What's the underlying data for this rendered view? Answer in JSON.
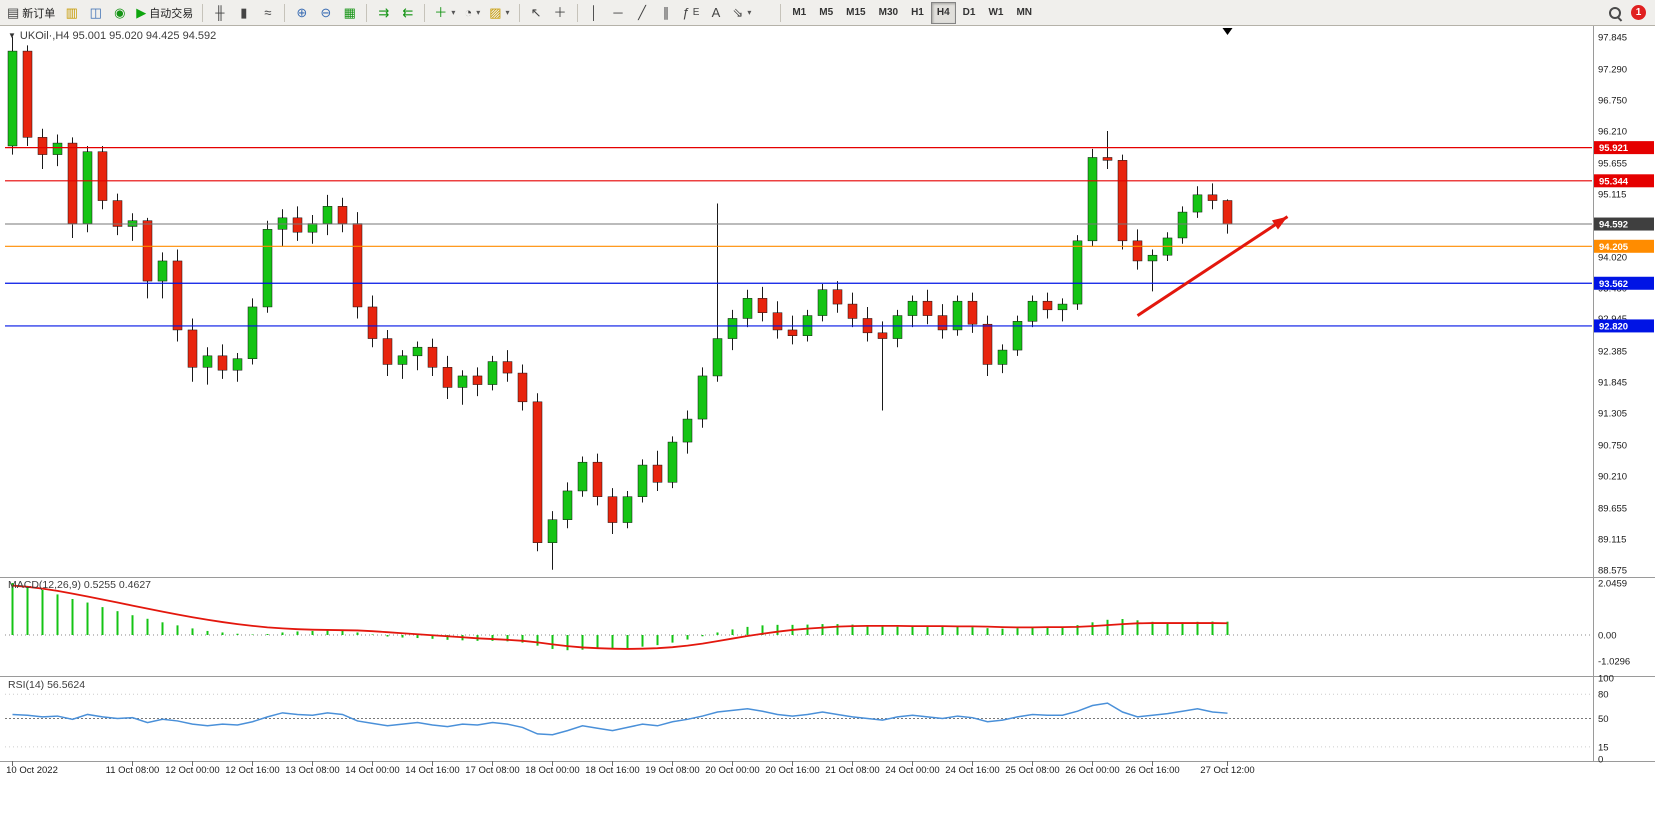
{
  "toolbar": {
    "new_order_label": "新订单",
    "autotrade_label": "自动交易",
    "timeframes": [
      "M1",
      "M5",
      "M15",
      "M30",
      "H1",
      "H4",
      "D1",
      "W1",
      "MN"
    ],
    "active_timeframe": "H4",
    "notification_badge": "1"
  },
  "chart": {
    "title_text": "UKOil·,H4 95.001 95.020 94.425 94.592",
    "symbol": "UKOil",
    "period": "H4"
  },
  "indicators": {
    "macd": {
      "header": "MACD(12,26,9) 0.5255 0.4627"
    },
    "rsi": {
      "header": "RSI(14) 56.5624"
    }
  },
  "chart_data": {
    "type": "candlestick",
    "symbol": "UKOil",
    "timeframe": "H4",
    "last_ohlc": {
      "open": 95.001,
      "high": 95.02,
      "low": 94.425,
      "close": 94.592
    },
    "price_ticks": [
      97.845,
      97.29,
      96.75,
      96.21,
      95.655,
      95.115,
      94.575,
      94.02,
      93.48,
      92.945,
      92.385,
      91.845,
      91.305,
      90.75,
      90.21,
      89.655,
      89.115,
      88.575
    ],
    "hlines": [
      {
        "price": 95.921,
        "color": "#e50000",
        "kind": "resistance"
      },
      {
        "price": 95.344,
        "color": "#e50000",
        "kind": "resistance"
      },
      {
        "price": 94.205,
        "color": "#ff8c00",
        "kind": "pivot"
      },
      {
        "price": 93.562,
        "color": "#0014e5",
        "kind": "support"
      },
      {
        "price": 92.82,
        "color": "#0014e5",
        "kind": "support"
      }
    ],
    "current_price": {
      "price": 94.592,
      "line_color": "#777777",
      "tag_color": "#3f3f3f"
    },
    "colors": {
      "up": "#14c414",
      "down": "#e8250e",
      "wick": "#1a1a1a"
    },
    "candles": [
      [
        95.95,
        97.85,
        95.8,
        97.6
      ],
      [
        97.6,
        97.7,
        95.95,
        96.1
      ],
      [
        96.1,
        96.25,
        95.55,
        95.8
      ],
      [
        95.8,
        96.15,
        95.6,
        96.0
      ],
      [
        96.0,
        96.1,
        94.35,
        94.6
      ],
      [
        94.6,
        95.95,
        94.45,
        95.85
      ],
      [
        95.85,
        95.95,
        94.85,
        95.0
      ],
      [
        95.0,
        95.12,
        94.4,
        94.55
      ],
      [
        94.55,
        94.78,
        94.3,
        94.65
      ],
      [
        94.65,
        94.7,
        93.3,
        93.6
      ],
      [
        93.6,
        94.1,
        93.3,
        93.95
      ],
      [
        93.95,
        94.15,
        92.55,
        92.75
      ],
      [
        92.75,
        92.95,
        91.85,
        92.1
      ],
      [
        92.1,
        92.45,
        91.8,
        92.3
      ],
      [
        92.3,
        92.5,
        91.9,
        92.05
      ],
      [
        92.05,
        92.35,
        91.85,
        92.25
      ],
      [
        92.25,
        93.3,
        92.15,
        93.15
      ],
      [
        93.15,
        94.65,
        93.05,
        94.5
      ],
      [
        94.5,
        94.85,
        94.2,
        94.7
      ],
      [
        94.7,
        94.9,
        94.3,
        94.45
      ],
      [
        94.45,
        94.75,
        94.25,
        94.6
      ],
      [
        94.6,
        95.1,
        94.4,
        94.9
      ],
      [
        94.9,
        95.05,
        94.45,
        94.6
      ],
      [
        94.6,
        94.8,
        92.95,
        93.15
      ],
      [
        93.15,
        93.35,
        92.45,
        92.6
      ],
      [
        92.6,
        92.75,
        91.95,
        92.15
      ],
      [
        92.15,
        92.4,
        91.9,
        92.3
      ],
      [
        92.3,
        92.55,
        92.05,
        92.45
      ],
      [
        92.45,
        92.6,
        91.95,
        92.1
      ],
      [
        92.1,
        92.3,
        91.55,
        91.75
      ],
      [
        91.75,
        92.05,
        91.45,
        91.95
      ],
      [
        91.95,
        92.1,
        91.6,
        91.8
      ],
      [
        91.8,
        92.3,
        91.7,
        92.2
      ],
      [
        92.2,
        92.4,
        91.85,
        92.0
      ],
      [
        92.0,
        92.15,
        91.35,
        91.5
      ],
      [
        91.5,
        91.65,
        88.9,
        89.05
      ],
      [
        89.05,
        89.6,
        88.58,
        89.45
      ],
      [
        89.45,
        90.1,
        89.3,
        89.95
      ],
      [
        89.95,
        90.55,
        89.85,
        90.45
      ],
      [
        90.45,
        90.6,
        89.7,
        89.85
      ],
      [
        89.85,
        90.0,
        89.2,
        89.4
      ],
      [
        89.4,
        89.95,
        89.3,
        89.85
      ],
      [
        89.85,
        90.5,
        89.75,
        90.4
      ],
      [
        90.4,
        90.65,
        89.95,
        90.1
      ],
      [
        90.1,
        90.9,
        90.0,
        90.8
      ],
      [
        90.8,
        91.35,
        90.6,
        91.2
      ],
      [
        91.2,
        92.1,
        91.05,
        91.95
      ],
      [
        91.95,
        94.95,
        91.85,
        92.6
      ],
      [
        92.6,
        93.1,
        92.4,
        92.95
      ],
      [
        92.95,
        93.45,
        92.8,
        93.3
      ],
      [
        93.3,
        93.5,
        92.9,
        93.05
      ],
      [
        93.05,
        93.25,
        92.6,
        92.75
      ],
      [
        92.75,
        93.0,
        92.5,
        92.65
      ],
      [
        92.65,
        93.1,
        92.55,
        93.0
      ],
      [
        93.0,
        93.55,
        92.9,
        93.45
      ],
      [
        93.45,
        93.6,
        93.05,
        93.2
      ],
      [
        93.2,
        93.4,
        92.8,
        92.95
      ],
      [
        92.95,
        93.15,
        92.55,
        92.7
      ],
      [
        92.7,
        92.9,
        91.35,
        92.6
      ],
      [
        92.6,
        93.1,
        92.45,
        93.0
      ],
      [
        93.0,
        93.35,
        92.8,
        93.25
      ],
      [
        93.25,
        93.45,
        92.85,
        93.0
      ],
      [
        93.0,
        93.2,
        92.6,
        92.75
      ],
      [
        92.75,
        93.35,
        92.65,
        93.25
      ],
      [
        93.25,
        93.4,
        92.7,
        92.85
      ],
      [
        92.85,
        93.0,
        91.95,
        92.15
      ],
      [
        92.15,
        92.5,
        92.0,
        92.4
      ],
      [
        92.4,
        93.0,
        92.3,
        92.9
      ],
      [
        92.9,
        93.35,
        92.8,
        93.25
      ],
      [
        93.25,
        93.4,
        92.95,
        93.1
      ],
      [
        93.1,
        93.3,
        92.9,
        93.2
      ],
      [
        93.2,
        94.4,
        93.1,
        94.3
      ],
      [
        94.3,
        95.9,
        94.2,
        95.75
      ],
      [
        95.75,
        96.21,
        95.55,
        95.7
      ],
      [
        95.7,
        95.8,
        94.15,
        94.3
      ],
      [
        94.3,
        94.5,
        93.8,
        93.95
      ],
      [
        93.95,
        94.15,
        93.42,
        94.05
      ],
      [
        94.05,
        94.45,
        93.95,
        94.35
      ],
      [
        94.35,
        94.9,
        94.25,
        94.8
      ],
      [
        94.8,
        95.25,
        94.7,
        95.1
      ],
      [
        95.1,
        95.3,
        94.85,
        95.0
      ],
      [
        95.001,
        95.02,
        94.425,
        94.592
      ]
    ],
    "time_labels": [
      {
        "i": 0,
        "t": "10 Oct 2022"
      },
      {
        "i": 8,
        "t": "11 Oct 08:00"
      },
      {
        "i": 12,
        "t": "12 Oct 00:00"
      },
      {
        "i": 16,
        "t": "12 Oct 16:00"
      },
      {
        "i": 20,
        "t": "13 Oct 08:00"
      },
      {
        "i": 24,
        "t": "14 Oct 00:00"
      },
      {
        "i": 28,
        "t": "14 Oct 16:00"
      },
      {
        "i": 32,
        "t": "17 Oct 08:00"
      },
      {
        "i": 36,
        "t": "18 Oct 00:00"
      },
      {
        "i": 40,
        "t": "18 Oct 16:00"
      },
      {
        "i": 44,
        "t": "19 Oct 08:00"
      },
      {
        "i": 48,
        "t": "20 Oct 00:00"
      },
      {
        "i": 52,
        "t": "20 Oct 16:00"
      },
      {
        "i": 56,
        "t": "21 Oct 08:00"
      },
      {
        "i": 60,
        "t": "24 Oct 00:00"
      },
      {
        "i": 64,
        "t": "24 Oct 16:00"
      },
      {
        "i": 68,
        "t": "25 Oct 08:00"
      },
      {
        "i": 72,
        "t": "26 Oct 00:00"
      },
      {
        "i": 76,
        "t": "26 Oct 16:00"
      },
      {
        "i": 81,
        "t": "27 Oct 12:00"
      }
    ],
    "trend_arrow": {
      "from_bar": 75,
      "from_price": 93.0,
      "to_bar": 85,
      "to_price": 94.72,
      "color": "#e3170d"
    },
    "macd": {
      "params": "12,26,9",
      "value": 0.5255,
      "signal": 0.4627,
      "axis": [
        "2.0459",
        "0.00",
        "-1.0296"
      ],
      "colors": {
        "histogram": "#14c414",
        "signal": "#e3170d"
      },
      "histogram": [
        2.05,
        1.92,
        1.78,
        1.6,
        1.42,
        1.28,
        1.1,
        0.94,
        0.78,
        0.64,
        0.5,
        0.38,
        0.26,
        0.16,
        0.1,
        0.05,
        0.02,
        0.04,
        0.1,
        0.14,
        0.16,
        0.18,
        0.16,
        0.1,
        0.02,
        -0.06,
        -0.1,
        -0.12,
        -0.15,
        -0.19,
        -0.21,
        -0.23,
        -0.23,
        -0.25,
        -0.3,
        -0.42,
        -0.55,
        -0.6,
        -0.58,
        -0.55,
        -0.56,
        -0.52,
        -0.46,
        -0.4,
        -0.3,
        -0.18,
        -0.05,
        0.1,
        0.22,
        0.32,
        0.38,
        0.4,
        0.4,
        0.41,
        0.43,
        0.43,
        0.41,
        0.38,
        0.34,
        0.33,
        0.35,
        0.35,
        0.33,
        0.33,
        0.31,
        0.27,
        0.25,
        0.27,
        0.31,
        0.33,
        0.33,
        0.39,
        0.5,
        0.6,
        0.63,
        0.58,
        0.52,
        0.49,
        0.5,
        0.52,
        0.53,
        0.5255
      ],
      "signal_line": [
        1.95,
        1.9,
        1.83,
        1.74,
        1.63,
        1.52,
        1.4,
        1.28,
        1.16,
        1.04,
        0.92,
        0.81,
        0.7,
        0.6,
        0.51,
        0.43,
        0.36,
        0.3,
        0.26,
        0.23,
        0.21,
        0.2,
        0.19,
        0.18,
        0.15,
        0.11,
        0.07,
        0.03,
        -0.01,
        -0.05,
        -0.09,
        -0.13,
        -0.16,
        -0.19,
        -0.23,
        -0.29,
        -0.37,
        -0.44,
        -0.49,
        -0.52,
        -0.54,
        -0.55,
        -0.54,
        -0.52,
        -0.48,
        -0.42,
        -0.34,
        -0.24,
        -0.14,
        -0.04,
        0.05,
        0.13,
        0.2,
        0.25,
        0.29,
        0.33,
        0.35,
        0.36,
        0.36,
        0.36,
        0.35,
        0.35,
        0.35,
        0.34,
        0.34,
        0.33,
        0.31,
        0.3,
        0.3,
        0.31,
        0.31,
        0.32,
        0.35,
        0.39,
        0.43,
        0.46,
        0.47,
        0.47,
        0.47,
        0.47,
        0.47,
        0.4627
      ]
    },
    "rsi": {
      "period": 14,
      "value": 56.5624,
      "axis": [
        "100",
        "80",
        "50",
        "15",
        "0"
      ],
      "level": 50,
      "color": "#4a90d9",
      "values": [
        55,
        54,
        52,
        53,
        49,
        55,
        52,
        50,
        51,
        45,
        49,
        47,
        43,
        41,
        43,
        42,
        46,
        52,
        57,
        55,
        54,
        57,
        55,
        47,
        44,
        41,
        43,
        45,
        42,
        40,
        43,
        42,
        45,
        43,
        39,
        31,
        30,
        35,
        41,
        38,
        35,
        39,
        43,
        41,
        46,
        49,
        53,
        58,
        60,
        62,
        59,
        55,
        53,
        55,
        58,
        55,
        52,
        50,
        48,
        52,
        54,
        52,
        50,
        53,
        51,
        46,
        48,
        52,
        55,
        54,
        54,
        59,
        66,
        69,
        58,
        52,
        54,
        56,
        59,
        62,
        58,
        56.56
      ]
    }
  }
}
